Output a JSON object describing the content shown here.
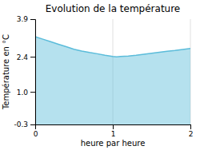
{
  "chart_data": {
    "type": "area",
    "title": "Evolution de la température",
    "x_label": "heure par heure",
    "y_label": "Température en °C",
    "x": [
      0,
      0.1,
      0.2,
      0.3,
      0.4,
      0.5,
      0.6,
      0.7,
      0.8,
      0.9,
      1.0,
      1.05,
      1.1,
      1.2,
      1.3,
      1.4,
      1.5,
      1.6,
      1.7,
      1.8,
      1.9,
      2.0
    ],
    "values": [
      3.2,
      3.1,
      3.0,
      2.9,
      2.8,
      2.7,
      2.63,
      2.57,
      2.52,
      2.46,
      2.41,
      2.4,
      2.41,
      2.43,
      2.46,
      2.5,
      2.54,
      2.58,
      2.62,
      2.65,
      2.69,
      2.73
    ],
    "xlim": [
      0,
      2
    ],
    "ylim": [
      -0.3,
      3.9
    ],
    "xticks": [
      0,
      1,
      2
    ],
    "yticks": [
      -0.3,
      {
        "value": 1.0,
        "label": "1.0"
      },
      2.4,
      3.9
    ],
    "color": "#5bbcda",
    "grid": true
  }
}
